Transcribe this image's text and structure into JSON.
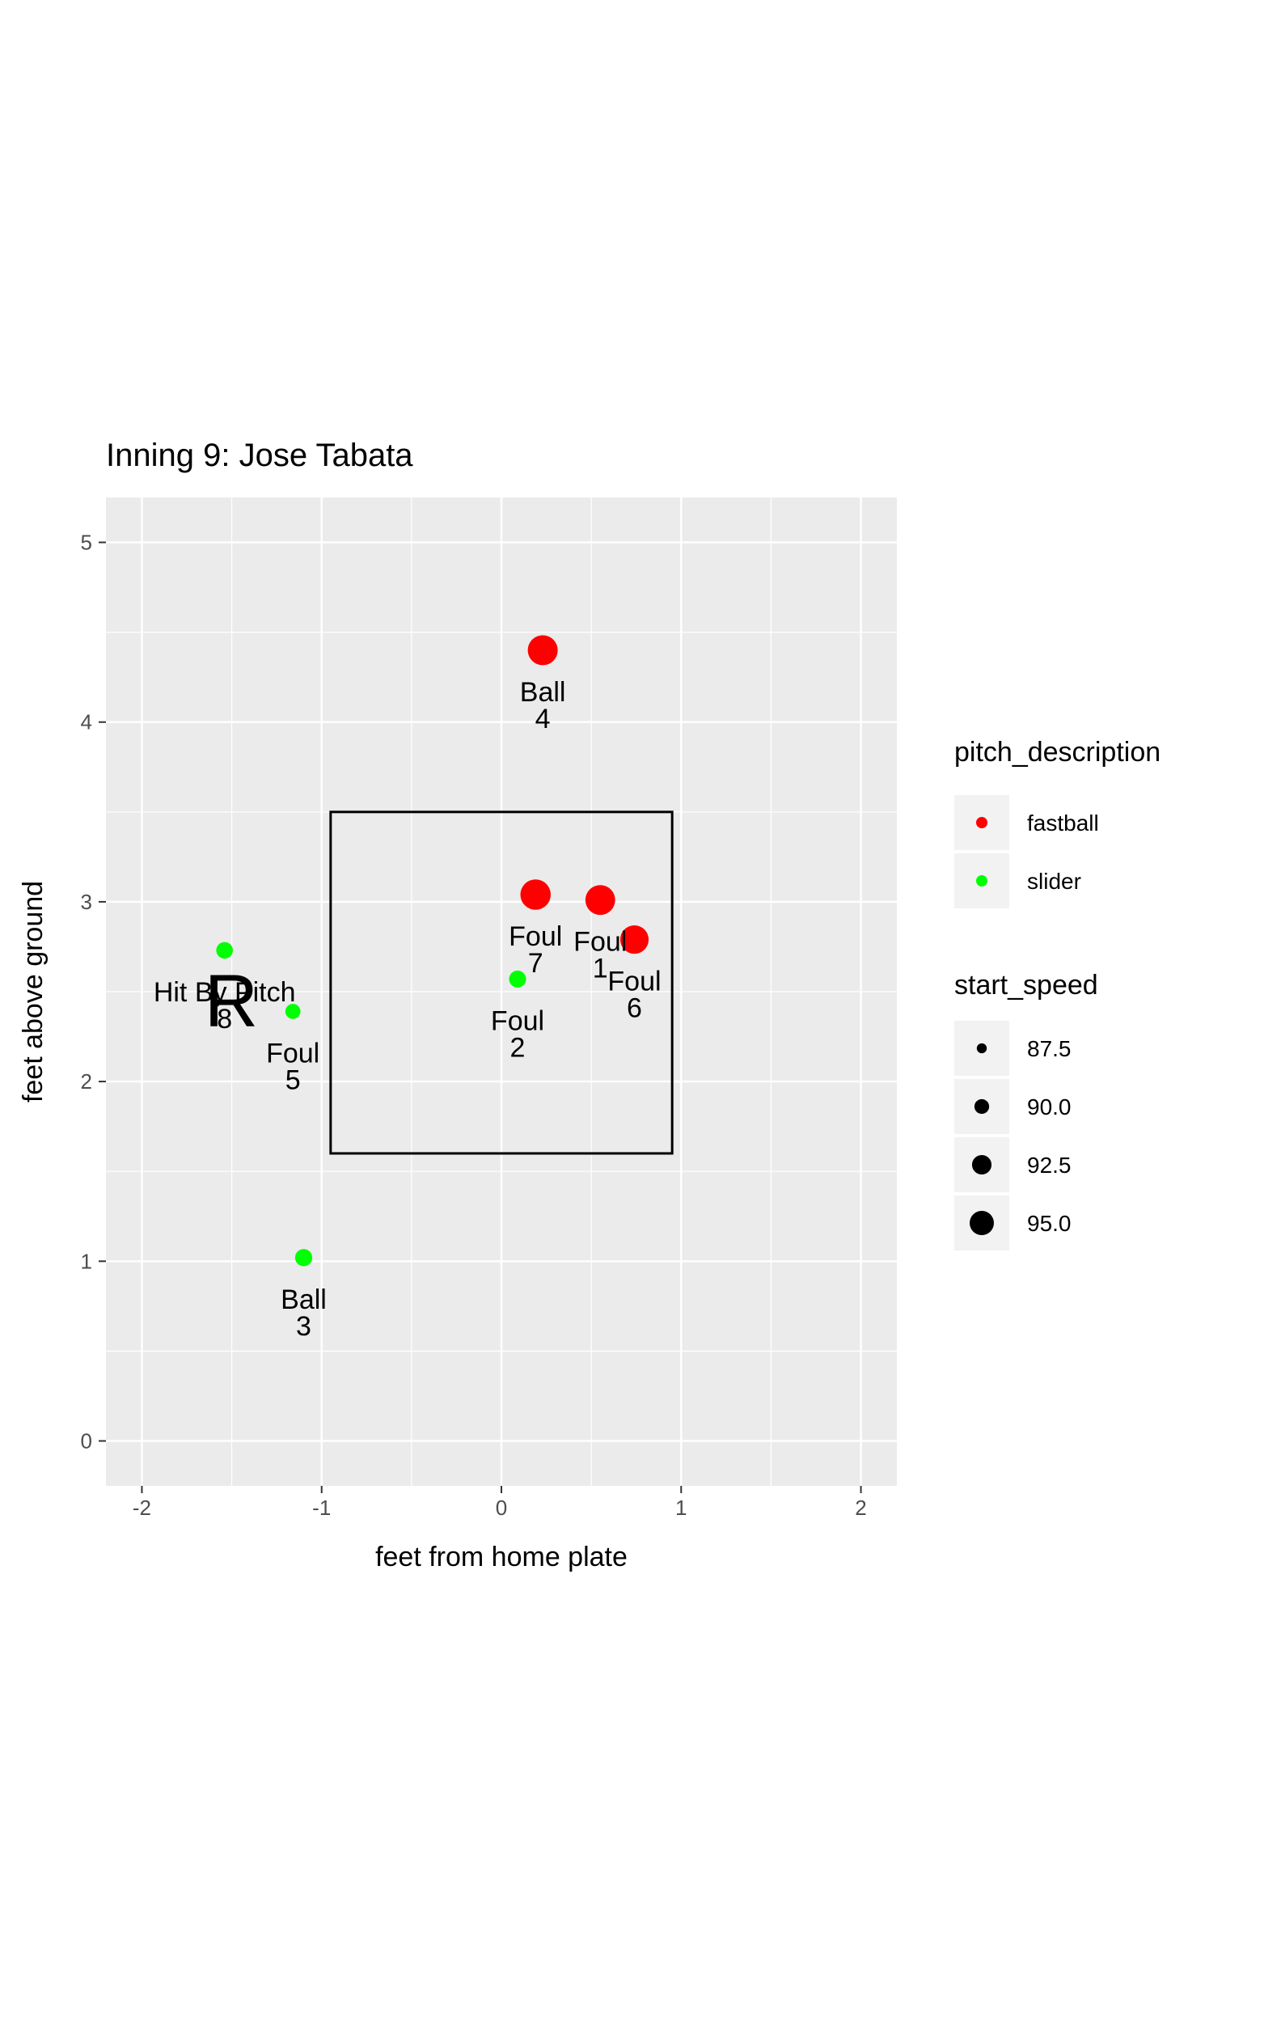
{
  "chart_data": {
    "type": "scatter",
    "title": "Inning 9: Jose Tabata",
    "xlabel": "feet from home plate",
    "ylabel": "feet above ground",
    "xlim": [
      -2.2,
      2.2
    ],
    "ylim": [
      -0.25,
      5.25
    ],
    "x_ticks": [
      -2,
      -1,
      0,
      1,
      2
    ],
    "x_tick_labels": [
      "-2",
      "-1",
      "0",
      "1",
      "2"
    ],
    "y_ticks": [
      0,
      1,
      2,
      3,
      4,
      5
    ],
    "y_tick_labels": [
      "0",
      "1",
      "2",
      "3",
      "4",
      "5"
    ],
    "grid": true,
    "strike_zone": {
      "x": [
        -0.95,
        0.95
      ],
      "y": [
        1.6,
        3.5
      ]
    },
    "batter_side": "R",
    "batter_side_position": {
      "x": -1.57,
      "y": 2.45
    },
    "points": [
      {
        "n": 1,
        "x": 0.55,
        "y": 3.01,
        "pitch_description": "fastball",
        "start_speed": 94.5,
        "label": "Foul",
        "number": "1"
      },
      {
        "n": 2,
        "x": 0.09,
        "y": 2.57,
        "pitch_description": "slider",
        "start_speed": 87.8,
        "label": "Foul",
        "number": "2"
      },
      {
        "n": 3,
        "x": -1.1,
        "y": 1.02,
        "pitch_description": "slider",
        "start_speed": 87.9,
        "label": "Ball",
        "number": "3"
      },
      {
        "n": 4,
        "x": 0.23,
        "y": 4.4,
        "pitch_description": "fastball",
        "start_speed": 94.6,
        "label": "Ball",
        "number": "4"
      },
      {
        "n": 5,
        "x": -1.16,
        "y": 2.39,
        "pitch_description": "slider",
        "start_speed": 86.8,
        "label": "Foul",
        "number": "5"
      },
      {
        "n": 6,
        "x": 0.74,
        "y": 2.79,
        "pitch_description": "fastball",
        "start_speed": 93.8,
        "label": "Foul",
        "number": "6"
      },
      {
        "n": 7,
        "x": 0.19,
        "y": 3.04,
        "pitch_description": "fastball",
        "start_speed": 94.8,
        "label": "Foul",
        "number": "7"
      },
      {
        "n": 8,
        "x": -1.54,
        "y": 2.73,
        "pitch_description": "slider",
        "start_speed": 87.6,
        "label": "Hit By Pitch",
        "number": "8"
      }
    ],
    "colors": {
      "fastball": "#ff0000",
      "slider": "#00ff00"
    },
    "legend": {
      "placement": "right",
      "color_title": "pitch_description",
      "color_items": [
        "fastball",
        "slider"
      ],
      "size_title": "start_speed",
      "size_items": [
        "87.5",
        "90.0",
        "92.5",
        "95.0"
      ],
      "size_values": [
        87.5,
        90.0,
        92.5,
        95.0
      ]
    },
    "panel_background": "#ebebeb",
    "grid_color": "#ffffff"
  }
}
